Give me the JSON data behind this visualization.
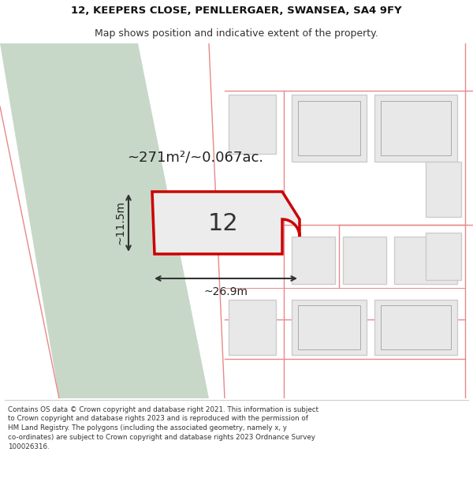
{
  "title_line1": "12, KEEPERS CLOSE, PENLLERGAER, SWANSEA, SA4 9FY",
  "title_line2": "Map shows position and indicative extent of the property.",
  "footer_lines": "Contains OS data © Crown copyright and database right 2021. This information is subject\nto Crown copyright and database rights 2023 and is reproduced with the permission of\nHM Land Registry. The polygons (including the associated geometry, namely x, y\nco-ordinates) are subject to Crown copyright and database rights 2023 Ordnance Survey\n100026316.",
  "area_text": "~271m²/~0.067ac.",
  "width_label": "~26.9m",
  "height_label": "~11.5m",
  "number_label": "12",
  "bg_color": "#ffffff",
  "map_bg": "#ffffff",
  "green_strip_color": "#c8d8c8",
  "main_plot_fill": "#ececec",
  "main_plot_border": "#cc0000",
  "other_plot_color": "#e8e8e8",
  "other_plot_border": "#cccccc",
  "road_line_color": "#e88888",
  "dim_line_color": "#333333"
}
